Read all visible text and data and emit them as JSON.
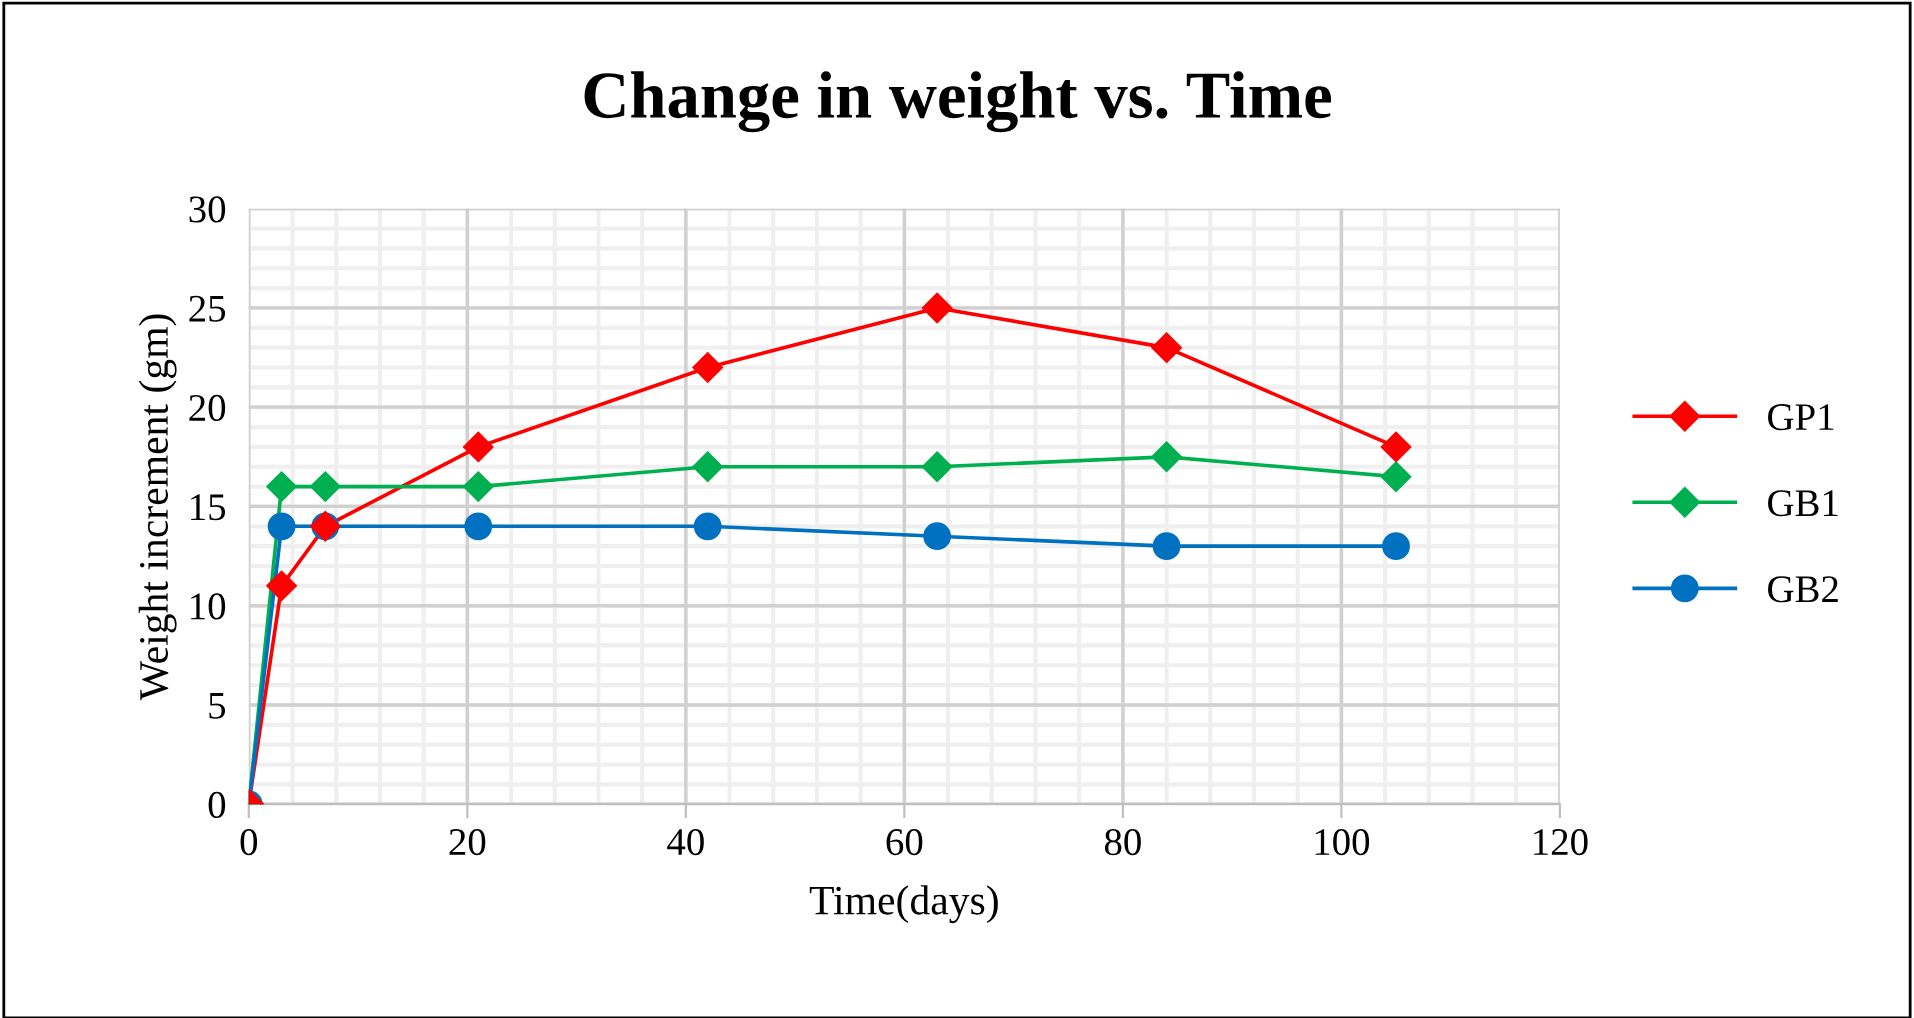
{
  "chart_data": {
    "type": "line",
    "title": "Change in weight vs. Time",
    "xlabel": "Time(days)",
    "ylabel": "Weight increment (gm)",
    "x": [
      0,
      3,
      7,
      21,
      42,
      63,
      84,
      105
    ],
    "series": [
      {
        "name": "GP1",
        "color": "#ff0000",
        "marker": "diamond",
        "values": [
          0,
          11,
          14,
          18,
          22,
          25,
          23,
          18
        ]
      },
      {
        "name": "GB1",
        "color": "#00b050",
        "marker": "diamond",
        "values": [
          0,
          16,
          16,
          16,
          17,
          17,
          17.5,
          16.5
        ]
      },
      {
        "name": "GB2",
        "color": "#0070c0",
        "marker": "circle",
        "values": [
          0,
          14,
          14,
          14,
          14,
          13.5,
          13,
          13
        ]
      }
    ],
    "xlim": [
      0,
      120
    ],
    "xticks": [
      0,
      20,
      40,
      60,
      80,
      100,
      120
    ],
    "ylim": [
      0,
      30
    ],
    "yticks": [
      0,
      5,
      10,
      15,
      20,
      25,
      30
    ],
    "grid": true,
    "legend": "right",
    "line_style": "solid"
  }
}
